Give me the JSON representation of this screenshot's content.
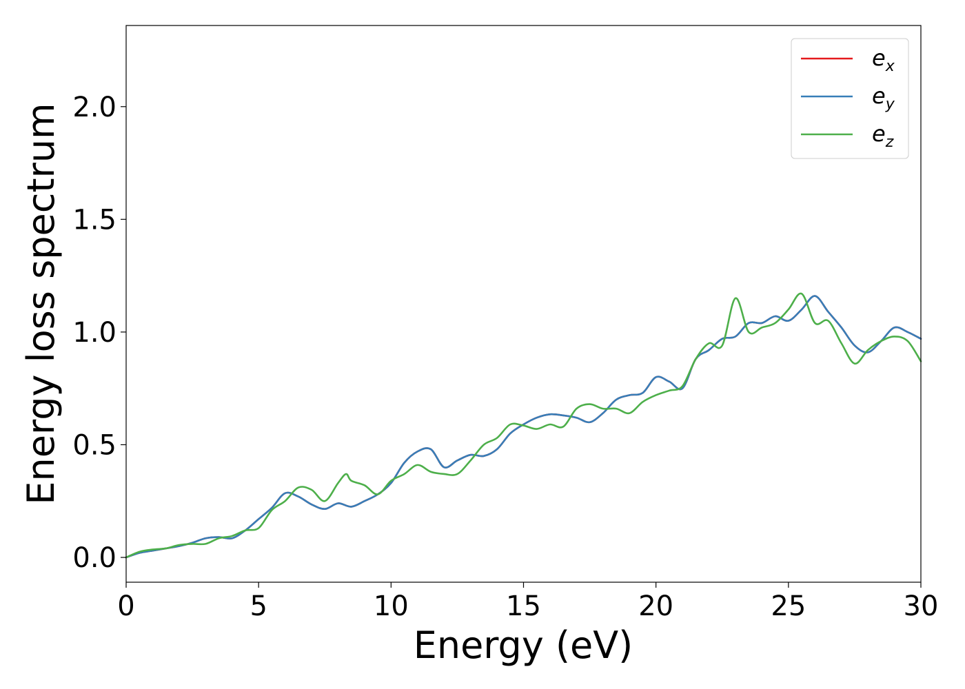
{
  "chart_data": {
    "type": "line",
    "xlabel": "Energy (eV)",
    "ylabel": "Energy loss spectrum",
    "xlim": [
      0,
      30
    ],
    "ylim": [
      -0.11,
      2.36
    ],
    "xticks": [
      0,
      5,
      10,
      15,
      20,
      25,
      30
    ],
    "xtick_labels": [
      "0",
      "5",
      "10",
      "15",
      "20",
      "25",
      "30"
    ],
    "yticks": [
      0.0,
      0.5,
      1.0,
      1.5,
      2.0
    ],
    "ytick_labels": [
      "0.0",
      "0.5",
      "1.0",
      "1.5",
      "2.0"
    ],
    "grid": false,
    "legend_position": "top-right",
    "series": [
      {
        "name": "e",
        "subscript": "x",
        "color": "#e41a1c",
        "x": [
          0,
          0.5,
          1,
          1.5,
          2,
          2.5,
          3,
          3.5,
          4,
          4.5,
          5,
          5.5,
          6,
          6.5,
          7,
          7.5,
          8,
          8.5,
          9,
          9.5,
          10,
          10.5,
          11,
          11.5,
          12,
          12.5,
          13,
          13.5,
          14,
          14.5,
          15,
          15.5,
          16,
          16.5,
          17,
          17.5,
          18,
          18.5,
          19,
          19.5,
          20,
          20.5,
          21,
          21.5,
          22,
          22.5,
          23,
          23.5,
          24,
          24.5,
          25,
          25.5,
          26,
          26.5,
          27,
          27.5,
          28,
          28.5,
          29,
          29.5,
          30
        ],
        "y": [
          0.0,
          0.02,
          0.03,
          0.04,
          0.05,
          0.065,
          0.085,
          0.09,
          0.085,
          0.12,
          0.17,
          0.22,
          0.285,
          0.27,
          0.235,
          0.215,
          0.24,
          0.225,
          0.25,
          0.28,
          0.33,
          0.42,
          0.47,
          0.48,
          0.4,
          0.43,
          0.455,
          0.45,
          0.48,
          0.55,
          0.59,
          0.62,
          0.635,
          0.63,
          0.62,
          0.6,
          0.64,
          0.7,
          0.72,
          0.73,
          0.8,
          0.78,
          0.75,
          0.88,
          0.92,
          0.97,
          0.98,
          1.04,
          1.04,
          1.07,
          1.05,
          1.1,
          1.16,
          1.09,
          1.02,
          0.94,
          0.91,
          0.96,
          1.02,
          1.0,
          0.97
        ]
      },
      {
        "name": "e",
        "subscript": "y",
        "color": "#377eb8",
        "x": [
          0,
          0.5,
          1,
          1.5,
          2,
          2.5,
          3,
          3.5,
          4,
          4.5,
          5,
          5.5,
          6,
          6.5,
          7,
          7.5,
          8,
          8.5,
          9,
          9.5,
          10,
          10.5,
          11,
          11.5,
          12,
          12.5,
          13,
          13.5,
          14,
          14.5,
          15,
          15.5,
          16,
          16.5,
          17,
          17.5,
          18,
          18.5,
          19,
          19.5,
          20,
          20.5,
          21,
          21.5,
          22,
          22.5,
          23,
          23.5,
          24,
          24.5,
          25,
          25.5,
          26,
          26.5,
          27,
          27.5,
          28,
          28.5,
          29,
          29.5,
          30
        ],
        "y": [
          0.0,
          0.02,
          0.03,
          0.04,
          0.05,
          0.065,
          0.085,
          0.09,
          0.085,
          0.12,
          0.17,
          0.22,
          0.285,
          0.27,
          0.235,
          0.215,
          0.24,
          0.225,
          0.25,
          0.28,
          0.33,
          0.42,
          0.47,
          0.48,
          0.4,
          0.43,
          0.455,
          0.45,
          0.48,
          0.55,
          0.59,
          0.62,
          0.635,
          0.63,
          0.62,
          0.6,
          0.64,
          0.7,
          0.72,
          0.73,
          0.8,
          0.78,
          0.75,
          0.88,
          0.92,
          0.97,
          0.98,
          1.04,
          1.04,
          1.07,
          1.05,
          1.1,
          1.16,
          1.09,
          1.02,
          0.94,
          0.91,
          0.96,
          1.02,
          1.0,
          0.97
        ]
      },
      {
        "name": "e",
        "subscript": "z",
        "color": "#4daf4a",
        "x": [
          0,
          0.5,
          1,
          1.5,
          2,
          2.5,
          3,
          3.5,
          4,
          4.5,
          5,
          5.5,
          6,
          6.5,
          7,
          7.5,
          8,
          8.3,
          8.5,
          9,
          9.5,
          10,
          10.5,
          11,
          11.5,
          12,
          12.5,
          13,
          13.5,
          14,
          14.5,
          15,
          15.5,
          16,
          16.5,
          17,
          17.5,
          18,
          18.5,
          19,
          19.5,
          20,
          20.5,
          21,
          21.5,
          22,
          22.5,
          23,
          23.5,
          24,
          24.5,
          25,
          25.5,
          26,
          26.5,
          27,
          27.5,
          28,
          28.5,
          29,
          29.5,
          30
        ],
        "y": [
          0.0,
          0.025,
          0.035,
          0.04,
          0.055,
          0.06,
          0.06,
          0.085,
          0.095,
          0.12,
          0.13,
          0.21,
          0.25,
          0.31,
          0.3,
          0.25,
          0.33,
          0.37,
          0.34,
          0.32,
          0.28,
          0.34,
          0.37,
          0.41,
          0.38,
          0.37,
          0.37,
          0.43,
          0.5,
          0.53,
          0.59,
          0.585,
          0.57,
          0.59,
          0.58,
          0.66,
          0.68,
          0.66,
          0.66,
          0.64,
          0.69,
          0.72,
          0.74,
          0.76,
          0.88,
          0.95,
          0.94,
          1.15,
          1.0,
          1.02,
          1.04,
          1.1,
          1.17,
          1.04,
          1.05,
          0.95,
          0.86,
          0.92,
          0.96,
          0.98,
          0.96,
          0.87
        ]
      }
    ]
  }
}
